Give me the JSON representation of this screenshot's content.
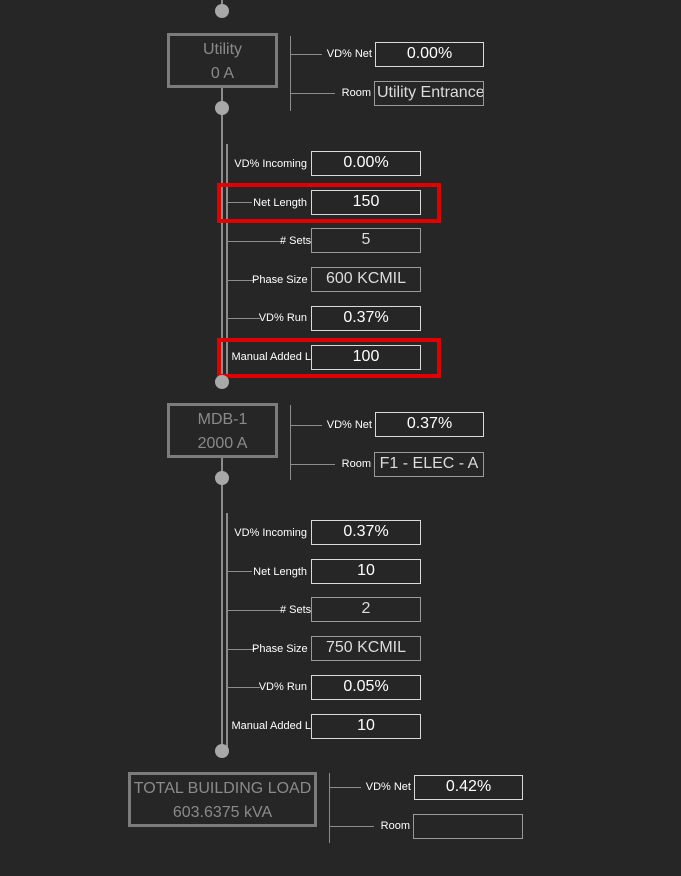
{
  "utility": {
    "name": "Utility",
    "amps": "0 A",
    "vd_net_label": "VD% Net",
    "vd_net": "0.00%",
    "room_label": "Room",
    "room": "Utility Entrance"
  },
  "feeder1": {
    "vd_incoming_label": "VD% Incoming",
    "vd_incoming": "0.00%",
    "net_length_label": "Net Length",
    "net_length": "150",
    "sets_label": "# Sets",
    "sets": "5",
    "phase_size_label": "Phase Size",
    "phase_size": "600 KCMIL",
    "vd_run_label": "VD% Run",
    "vd_run": "0.37%",
    "manual_added_label": "Manual Added L",
    "manual_added": "100"
  },
  "mdb1": {
    "name": "MDB-1",
    "amps": "2000 A",
    "vd_net_label": "VD% Net",
    "vd_net": "0.37%",
    "room_label": "Room",
    "room": "F1 - ELEC - A"
  },
  "feeder2": {
    "vd_incoming_label": "VD% Incoming",
    "vd_incoming": "0.37%",
    "net_length_label": "Net Length",
    "net_length": "10",
    "sets_label": "# Sets",
    "sets": "2",
    "phase_size_label": "Phase Size",
    "phase_size": "750 KCMIL",
    "vd_run_label": "VD% Run",
    "vd_run": "0.05%",
    "manual_added_label": "Manual Added L",
    "manual_added": "10"
  },
  "total": {
    "name": "TOTAL BUILDING LOAD",
    "kva": "603.6375 kVA",
    "vd_net_label": "VD% Net",
    "vd_net": "0.42%",
    "room_label": "Room",
    "room": ""
  },
  "colors": {
    "background": "#262626",
    "highlight": "#e00000",
    "line": "#8c8c8c",
    "node_border": "#7c7c7c"
  }
}
